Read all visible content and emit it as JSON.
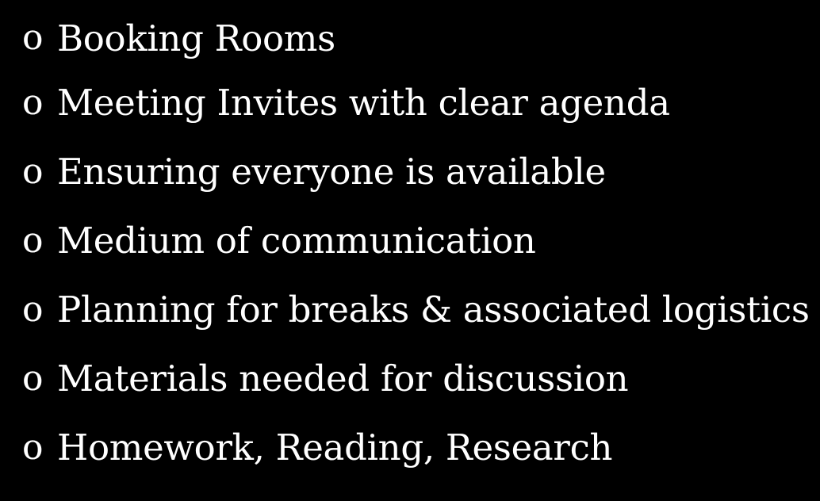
{
  "slide": {
    "bullet_marker": "o",
    "items": [
      {
        "text": "Booking Rooms"
      },
      {
        "text": "Meeting Invites with clear agenda"
      },
      {
        "text": "Ensuring everyone is available"
      },
      {
        "text": "Medium of communication"
      },
      {
        "text": "Planning for breaks & associated logistics"
      },
      {
        "text": "Materials needed for discussion"
      },
      {
        "text": "Homework, Reading, Research"
      }
    ]
  },
  "colors": {
    "background": "#000000",
    "text": "#ffffff"
  }
}
